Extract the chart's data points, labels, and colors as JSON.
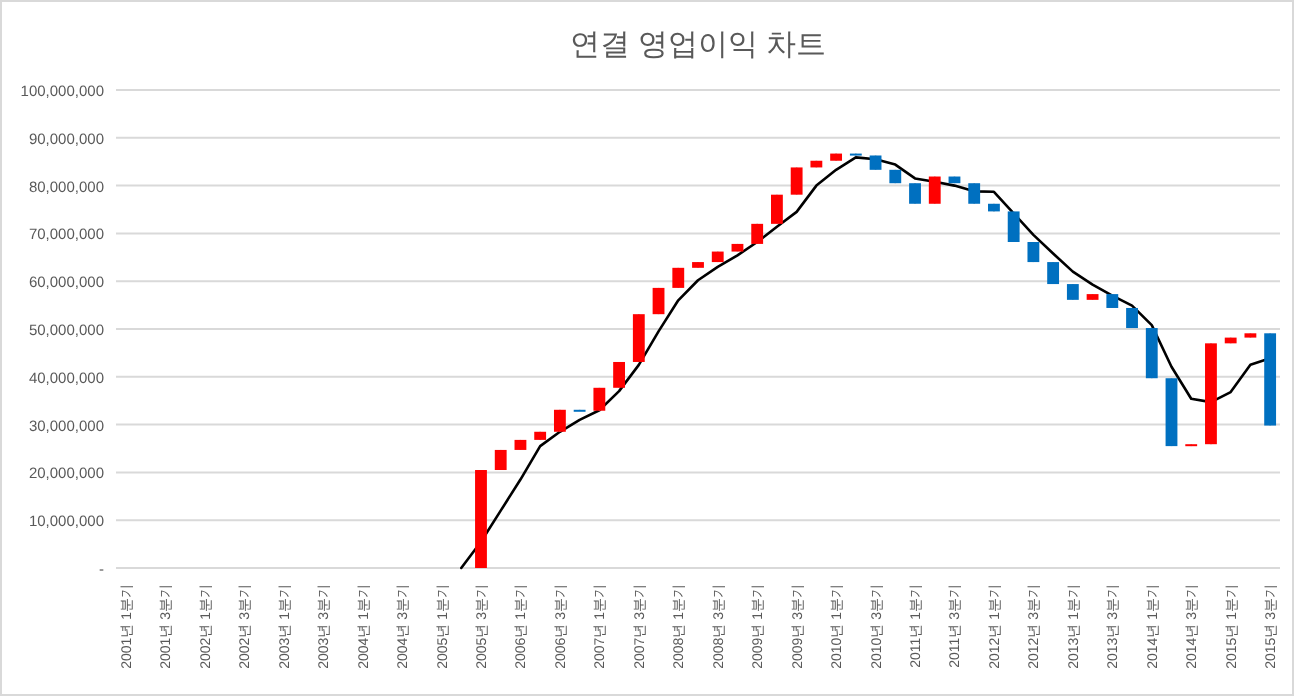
{
  "chart_data": {
    "type": "candlestick",
    "title": "연결 영업이익 차트",
    "categories": [
      "2001년 1분기",
      null,
      "2001년 3분기",
      null,
      "2002년 1분기",
      null,
      "2002년 3분기",
      null,
      "2003년 1분기",
      null,
      "2003년 3분기",
      null,
      "2004년 1분기",
      null,
      "2004년 3분기",
      null,
      "2005년 1분기",
      null,
      "2005년 3분기",
      null,
      "2006년 1분기",
      null,
      "2006년 3분기",
      null,
      "2007년 1분기",
      null,
      "2007년 3분기",
      null,
      "2008년 1분기",
      null,
      "2008년 3분기",
      null,
      "2009년 1분기",
      null,
      "2009년 3분기",
      null,
      "2010년 1분기",
      null,
      "2010년 3분기",
      null,
      "2011년 1분기",
      null,
      "2011년 3분기",
      null,
      "2012년 1분기",
      null,
      "2012년 3분기",
      null,
      "2013년 1분기",
      null,
      "2013년 3분기",
      null,
      "2014년 1분기",
      null,
      "2014년 3분기",
      null,
      "2015년 1분기",
      null,
      "2015년 3분기"
    ],
    "ohlc": [
      null,
      null,
      null,
      null,
      null,
      null,
      null,
      null,
      null,
      null,
      null,
      null,
      null,
      null,
      null,
      null,
      null,
      null,
      [
        0,
        20500000,
        0,
        20500000
      ],
      [
        20500000,
        24700000,
        20500000,
        24700000
      ],
      [
        24700000,
        26800000,
        24700000,
        26800000
      ],
      [
        26800000,
        28500000,
        26800000,
        28500000
      ],
      [
        28500000,
        33100000,
        28500000,
        33100000
      ],
      [
        33100000,
        33100000,
        32900000,
        32900000
      ],
      [
        32900000,
        37700000,
        32900000,
        37700000
      ],
      [
        37700000,
        43100000,
        37700000,
        43100000
      ],
      [
        43100000,
        53100000,
        43100000,
        53100000
      ],
      [
        53100000,
        58600000,
        53100000,
        58600000
      ],
      [
        58600000,
        62800000,
        58600000,
        62800000
      ],
      [
        62800000,
        64000000,
        62800000,
        64000000
      ],
      [
        64000000,
        66200000,
        64000000,
        66200000
      ],
      [
        66200000,
        67800000,
        66200000,
        67800000
      ],
      [
        67800000,
        72000000,
        67800000,
        72000000
      ],
      [
        72000000,
        78100000,
        72000000,
        78100000
      ],
      [
        78100000,
        83800000,
        78100000,
        83800000
      ],
      [
        83800000,
        85200000,
        83800000,
        85200000
      ],
      [
        85200000,
        86700000,
        85200000,
        86700000
      ],
      [
        86700000,
        86700000,
        86300000,
        86300000
      ],
      [
        86300000,
        86300000,
        83300000,
        83300000
      ],
      [
        83300000,
        83300000,
        80500000,
        80500000
      ],
      [
        80500000,
        80500000,
        76200000,
        76200000
      ],
      [
        76200000,
        81900000,
        76200000,
        81900000
      ],
      [
        81900000,
        81900000,
        80500000,
        80500000
      ],
      [
        80500000,
        80500000,
        76200000,
        76200000
      ],
      [
        76200000,
        76200000,
        74600000,
        74600000
      ],
      [
        74600000,
        74600000,
        68200000,
        68200000
      ],
      [
        68200000,
        68200000,
        64000000,
        64000000
      ],
      [
        64000000,
        64000000,
        59400000,
        59400000
      ],
      [
        59400000,
        59400000,
        56100000,
        56100000
      ],
      [
        56100000,
        57300000,
        56100000,
        57300000
      ],
      [
        57300000,
        57300000,
        54400000,
        54400000
      ],
      [
        54400000,
        54400000,
        50200000,
        50200000
      ],
      [
        50200000,
        50200000,
        39700000,
        39700000
      ],
      [
        39700000,
        39700000,
        25500000,
        25500000
      ],
      [
        25500000,
        25900000,
        25500000,
        25900000
      ],
      [
        25900000,
        47000000,
        25900000,
        47000000
      ],
      [
        47000000,
        48200000,
        47000000,
        48200000
      ],
      [
        48200000,
        49100000,
        48200000,
        49100000
      ],
      [
        49100000,
        49100000,
        29800000,
        29800000
      ]
    ],
    "colors": [
      null,
      null,
      null,
      null,
      null,
      null,
      null,
      null,
      null,
      null,
      null,
      null,
      null,
      null,
      null,
      null,
      null,
      null,
      "#ff0000",
      "#ff0000",
      "#ff0000",
      "#ff0000",
      "#ff0000",
      "#0070c0",
      "#ff0000",
      "#ff0000",
      "#ff0000",
      "#ff0000",
      "#ff0000",
      "#ff0000",
      "#ff0000",
      "#ff0000",
      "#ff0000",
      "#ff0000",
      "#ff0000",
      "#ff0000",
      "#ff0000",
      "#0070c0",
      "#0070c0",
      "#0070c0",
      "#0070c0",
      "#ff0000",
      "#0070c0",
      "#0070c0",
      "#0070c0",
      "#0070c0",
      "#0070c0",
      "#0070c0",
      "#0070c0",
      "#ff0000",
      "#0070c0",
      "#0070c0",
      "#0070c0",
      "#0070c0",
      "#ff0000",
      "#ff0000",
      "#ff0000",
      "#ff0000",
      "#0070c0"
    ],
    "series": [
      {
        "type": "line",
        "color": "#000000",
        "values": [
          null,
          null,
          null,
          null,
          null,
          null,
          null,
          null,
          null,
          null,
          null,
          null,
          null,
          null,
          null,
          null,
          null,
          0,
          5500000,
          12000000,
          18500000,
          25500000,
          28500000,
          31000000,
          33000000,
          37000000,
          42500000,
          49500000,
          56000000,
          60200000,
          63000000,
          65400000,
          68200000,
          71400000,
          74500000,
          80000000,
          83300000,
          85900000,
          85500000,
          84400000,
          81500000,
          80800000,
          80000000,
          78800000,
          78700000,
          74200000,
          69700000,
          65800000,
          62000000,
          59300000,
          57000000,
          54900000,
          50800000,
          42100000,
          35400000,
          34700000,
          36800000,
          42500000,
          43900000
        ]
      }
    ],
    "ylim": [
      0,
      100000000
    ],
    "yticks": [
      {
        "value": 0,
        "label": "-"
      },
      {
        "value": 10000000,
        "label": "10,000,000"
      },
      {
        "value": 20000000,
        "label": "20,000,000"
      },
      {
        "value": 30000000,
        "label": "30,000,000"
      },
      {
        "value": 40000000,
        "label": "40,000,000"
      },
      {
        "value": 50000000,
        "label": "50,000,000"
      },
      {
        "value": 60000000,
        "label": "60,000,000"
      },
      {
        "value": 70000000,
        "label": "70,000,000"
      },
      {
        "value": 80000000,
        "label": "80,000,000"
      },
      {
        "value": 90000000,
        "label": "90,000,000"
      },
      {
        "value": 100000000,
        "label": "100,000,000"
      }
    ],
    "grid": "y"
  }
}
